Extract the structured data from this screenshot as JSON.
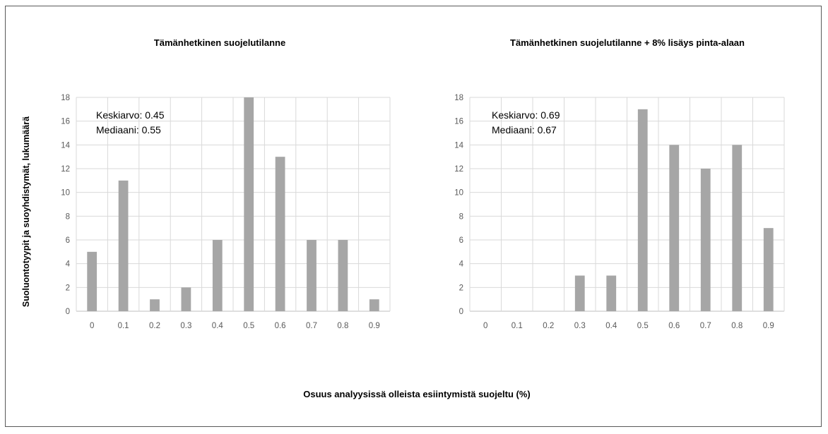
{
  "xlabel": "Osuus analyysissä olleista esiintymistä suojeltu (%)",
  "ylabel": "Suoluontotyypit ja suoyhdistymät, lukumäärä",
  "chart_data": [
    {
      "type": "bar",
      "title": "Tämänhetkinen suojelutilanne",
      "categories": [
        "0",
        "0.1",
        "0.2",
        "0.3",
        "0.4",
        "0.5",
        "0.6",
        "0.7",
        "0.8",
        "0.9"
      ],
      "values": [
        5,
        11,
        1,
        2,
        6,
        18,
        13,
        6,
        6,
        1
      ],
      "ylim": [
        0,
        18
      ],
      "yticks": [
        "0",
        "2",
        "4",
        "6",
        "8",
        "10",
        "12",
        "14",
        "16",
        "18"
      ],
      "grid": true,
      "bar_color": "#a6a6a6",
      "annotations": [
        "Keskiarvo: 0.45",
        "Mediaani: 0.55"
      ]
    },
    {
      "type": "bar",
      "title": "Tämänhetkinen suojelutilanne + 8% lisäys pinta-alaan",
      "categories": [
        "0",
        "0.1",
        "0.2",
        "0.3",
        "0.4",
        "0.5",
        "0.6",
        "0.7",
        "0.8",
        "0.9"
      ],
      "values": [
        0,
        0,
        0,
        3,
        3,
        17,
        14,
        12,
        14,
        7
      ],
      "ylim": [
        0,
        18
      ],
      "yticks": [
        "0",
        "2",
        "4",
        "6",
        "8",
        "10",
        "12",
        "14",
        "16",
        "18"
      ],
      "grid": true,
      "bar_color": "#a6a6a6",
      "annotations": [
        "Keskiarvo: 0.69",
        "Mediaani: 0.67"
      ]
    }
  ]
}
